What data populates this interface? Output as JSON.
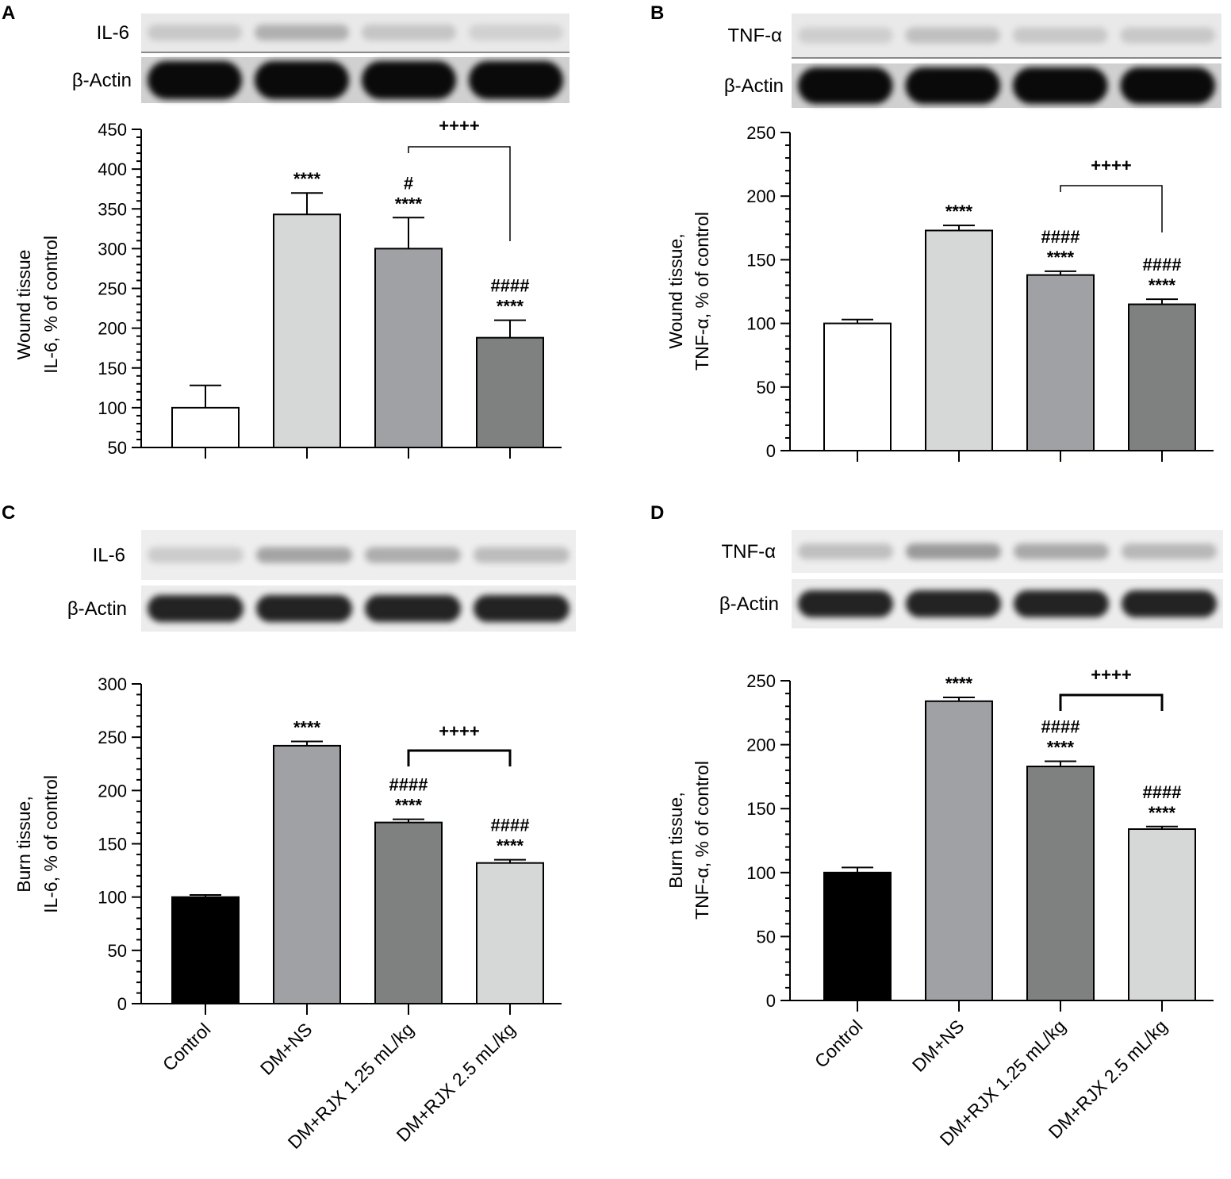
{
  "categories": [
    "Control",
    "DM+NS",
    "DM+RJX 1.25 mL/kg",
    "DM+RJX 2.5 mL/kg"
  ],
  "chart_data": [
    {
      "panel": "A",
      "type": "bar",
      "blot": {
        "top_label": "IL-6",
        "bottom_label": "β-Actin",
        "top_intensity": [
          0.22,
          0.38,
          0.24,
          0.16
        ],
        "bottom_intensity": [
          0.95,
          0.95,
          0.95,
          0.95
        ]
      },
      "ylabel": [
        "Wound tissue",
        "IL-6, % of control"
      ],
      "ylim": [
        50,
        450
      ],
      "yticks": [
        50,
        100,
        150,
        200,
        250,
        300,
        350,
        400,
        450
      ],
      "values": [
        100,
        343,
        300,
        188
      ],
      "errors": [
        28,
        27,
        39,
        22
      ],
      "colors": [
        "#ffffff",
        "#d6d7d7",
        "#a0a1a5",
        "#7f8180"
      ],
      "annotations": [
        [],
        [
          "****"
        ],
        [
          "#",
          "****"
        ],
        [
          "####",
          "****"
        ]
      ],
      "bracket": {
        "from": 2,
        "to": 3,
        "label": "++++"
      },
      "show_category_labels": false
    },
    {
      "panel": "B",
      "type": "bar",
      "blot": {
        "top_label": "TNF-α",
        "bottom_label": "β-Actin",
        "top_intensity": [
          0.18,
          0.28,
          0.22,
          0.22
        ],
        "bottom_intensity": [
          0.95,
          0.95,
          0.95,
          0.95
        ]
      },
      "ylabel": [
        "Wound tissue,",
        "TNF-α, % of control"
      ],
      "ylim": [
        0,
        250
      ],
      "yticks": [
        0,
        50,
        100,
        150,
        200,
        250
      ],
      "values": [
        100,
        173,
        138,
        115
      ],
      "errors": [
        3,
        4,
        3,
        4
      ],
      "colors": [
        "#ffffff",
        "#d6d7d7",
        "#a0a1a5",
        "#7f8180"
      ],
      "annotations": [
        [],
        [
          "****"
        ],
        [
          "####",
          "****"
        ],
        [
          "####",
          "****"
        ]
      ],
      "bracket": {
        "from": 2,
        "to": 3,
        "label": "++++"
      },
      "show_category_labels": false
    },
    {
      "panel": "C",
      "type": "bar",
      "blot": {
        "top_label": "IL-6",
        "bottom_label": "β-Actin",
        "top_intensity": [
          0.22,
          0.48,
          0.42,
          0.32
        ],
        "bottom_intensity": [
          0.85,
          0.85,
          0.85,
          0.85
        ]
      },
      "ylabel": [
        "Burn tissue,",
        "IL-6, % of control"
      ],
      "ylim": [
        0,
        300
      ],
      "yticks": [
        0,
        50,
        100,
        150,
        200,
        250,
        300
      ],
      "values": [
        100,
        242,
        170,
        132
      ],
      "errors": [
        2,
        4,
        3,
        3
      ],
      "colors": [
        "#000000",
        "#a0a1a5",
        "#7f8180",
        "#d6d7d7"
      ],
      "annotations": [
        [],
        [
          "****"
        ],
        [
          "####",
          "****"
        ],
        [
          "####",
          "****"
        ]
      ],
      "bracket": {
        "from": 2,
        "to": 3,
        "label": "++++"
      },
      "show_category_labels": true
    },
    {
      "panel": "D",
      "type": "bar",
      "blot": {
        "top_label": "TNF-α",
        "bottom_label": "β-Actin",
        "top_intensity": [
          0.3,
          0.55,
          0.45,
          0.35
        ],
        "bottom_intensity": [
          0.85,
          0.85,
          0.85,
          0.85
        ]
      },
      "ylabel": [
        "Burn tissue,",
        "TNF-α, % of control"
      ],
      "ylim": [
        0,
        250
      ],
      "yticks": [
        0,
        50,
        100,
        150,
        200,
        250
      ],
      "values": [
        100,
        234,
        183,
        134
      ],
      "errors": [
        4,
        3,
        4,
        2
      ],
      "colors": [
        "#000000",
        "#a0a1a5",
        "#7f8180",
        "#d6d7d7"
      ],
      "annotations": [
        [],
        [
          "****"
        ],
        [
          "####",
          "****"
        ],
        [
          "####",
          "****"
        ]
      ],
      "bracket": {
        "from": 2,
        "to": 3,
        "label": "++++"
      },
      "show_category_labels": true
    }
  ]
}
